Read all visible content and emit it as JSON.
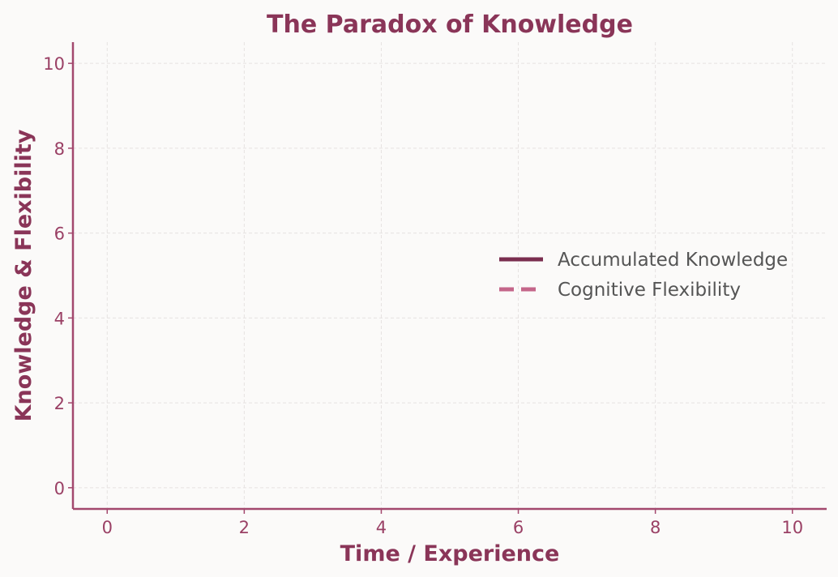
{
  "chart_data": {
    "type": "line",
    "title": "The Paradox of Knowledge",
    "xlabel": "Time / Experience",
    "ylabel": "Knowledge & Flexibility",
    "xlim": [
      -0.5,
      10.5
    ],
    "ylim": [
      -0.5,
      10.5
    ],
    "xticks": [
      "0",
      "2",
      "4",
      "6",
      "8",
      "10"
    ],
    "yticks": [
      "0",
      "2",
      "4",
      "6",
      "8",
      "10"
    ],
    "grid": true,
    "legend_position": "center-right",
    "series": [
      {
        "name": "Accumulated Knowledge",
        "style": "solid",
        "color": "#7a2e4f",
        "x": [],
        "y": []
      },
      {
        "name": "Cognitive Flexibility",
        "style": "dashed",
        "color": "#c4668a",
        "x": [],
        "y": []
      }
    ]
  },
  "colors": {
    "title": "#8a3558",
    "axis": "#a3486e",
    "tick_text": "#9a4065",
    "grid": "#e6e2e1",
    "legend_text": "#555555",
    "background": "#fbfaf9"
  }
}
